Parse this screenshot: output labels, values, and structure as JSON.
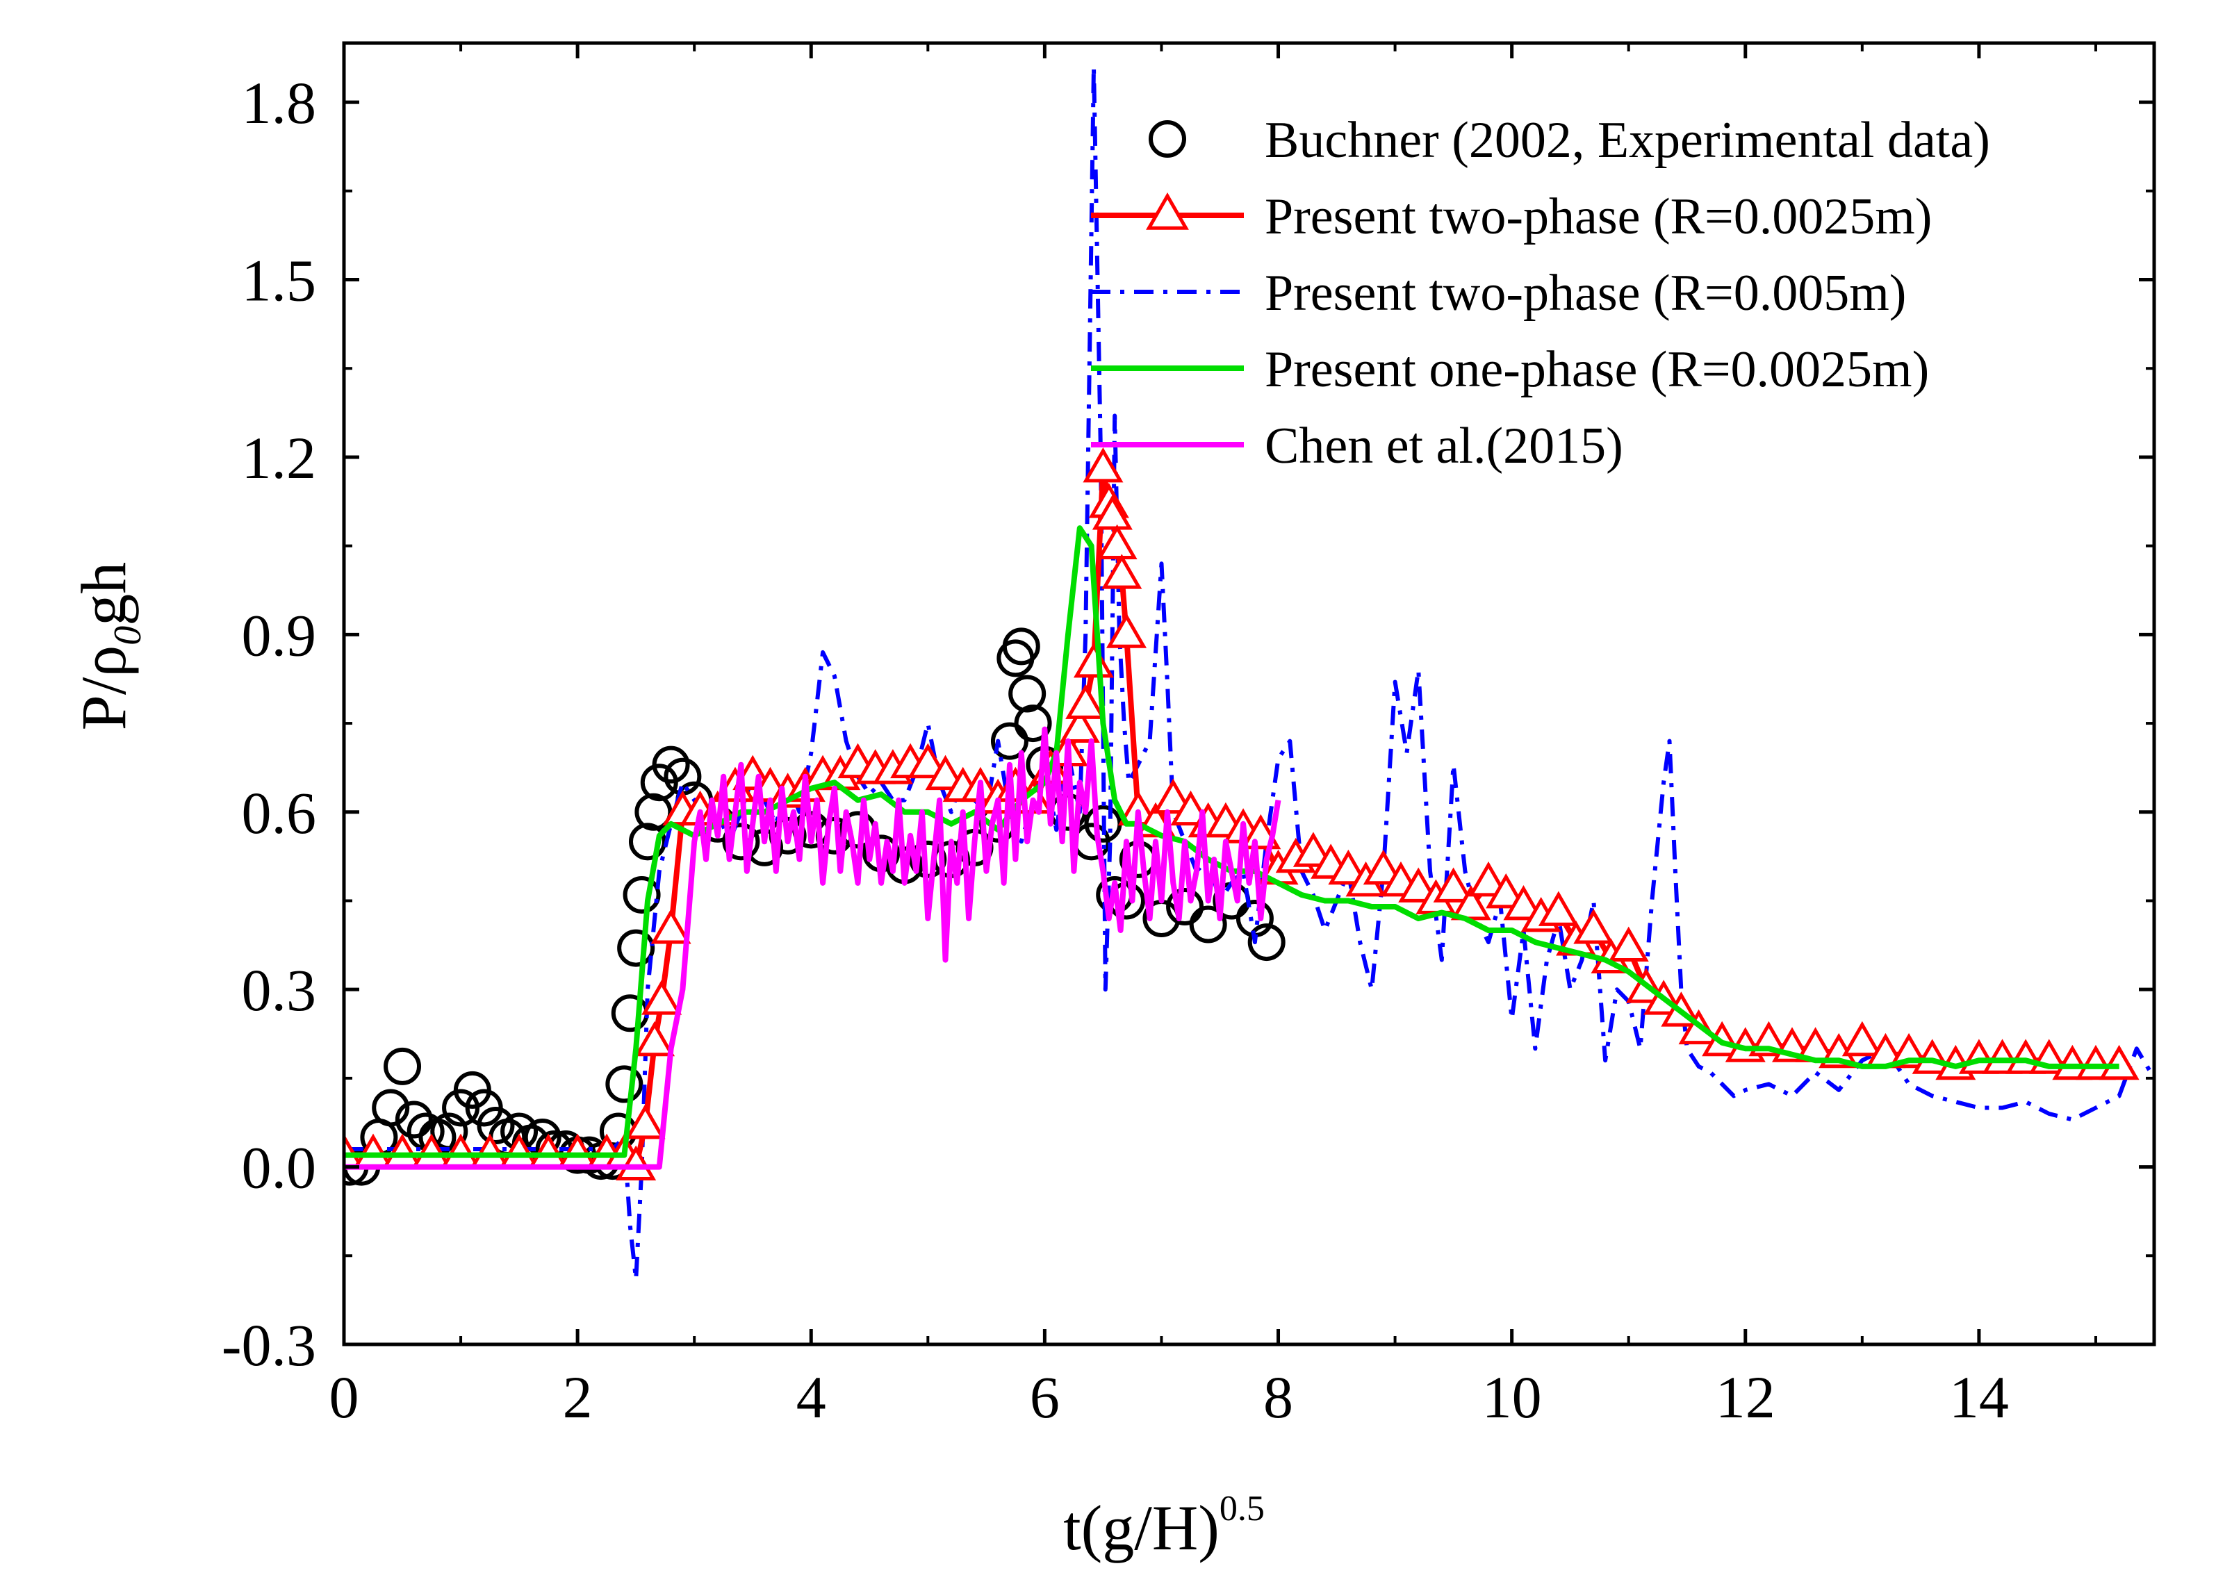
{
  "chart_data": {
    "type": "line",
    "title": "",
    "xlabel": "t(g/H)",
    "xlabel_superscript": "0.5",
    "ylabel_main": "P/ρ",
    "ylabel_sub": "0",
    "ylabel_tail": "gh",
    "xlim": [
      0,
      15.5
    ],
    "ylim": [
      -0.3,
      1.9
    ],
    "xticks": [
      0,
      2,
      4,
      6,
      8,
      10,
      12,
      14
    ],
    "xtick_labels": [
      "0",
      "2",
      "4",
      "6",
      "8",
      "10",
      "12",
      "14"
    ],
    "yticks": [
      -0.3,
      0.0,
      0.3,
      0.6,
      0.9,
      1.2,
      1.5,
      1.8
    ],
    "ytick_labels": [
      "-0.3",
      "0.0",
      "0.3",
      "0.6",
      "0.9",
      "1.2",
      "1.5",
      "1.8"
    ],
    "legend_position": "top-right",
    "colors": {
      "experimental": "#000000",
      "two_phase_0025": "#ff0000",
      "two_phase_005": "#0000ff",
      "one_phase": "#00dd00",
      "chen": "#ff00ff"
    },
    "series": [
      {
        "name": "Buchner (2002, Experimental data)",
        "style": "circles",
        "color": "#000000",
        "x": [
          0.05,
          0.15,
          0.3,
          0.4,
          0.5,
          0.6,
          0.7,
          0.8,
          0.9,
          1.0,
          1.1,
          1.2,
          1.3,
          1.4,
          1.5,
          1.6,
          1.7,
          1.8,
          1.9,
          2.0,
          2.1,
          2.2,
          2.3,
          2.35,
          2.4,
          2.45,
          2.5,
          2.55,
          2.6,
          2.65,
          2.7,
          2.8,
          2.9,
          3.0,
          3.2,
          3.4,
          3.6,
          3.8,
          4.0,
          4.2,
          4.4,
          4.6,
          4.8,
          5.0,
          5.2,
          5.4,
          5.6,
          5.7,
          5.75,
          5.8,
          5.85,
          5.9,
          6.0,
          6.2,
          6.4,
          6.5,
          6.6,
          6.7,
          6.8,
          7.0,
          7.2,
          7.4,
          7.6,
          7.8,
          7.9
        ],
        "values": [
          0.0,
          0.0,
          0.05,
          0.1,
          0.17,
          0.08,
          0.06,
          0.05,
          0.06,
          0.1,
          0.13,
          0.1,
          0.07,
          0.05,
          0.06,
          0.04,
          0.05,
          0.03,
          0.03,
          0.02,
          0.02,
          0.01,
          0.01,
          0.06,
          0.14,
          0.26,
          0.37,
          0.46,
          0.55,
          0.6,
          0.65,
          0.68,
          0.66,
          0.62,
          0.58,
          0.55,
          0.54,
          0.56,
          0.57,
          0.56,
          0.57,
          0.53,
          0.51,
          0.52,
          0.52,
          0.54,
          0.58,
          0.72,
          0.86,
          0.88,
          0.8,
          0.75,
          0.68,
          0.6,
          0.55,
          0.58,
          0.46,
          0.45,
          0.52,
          0.42,
          0.44,
          0.41,
          0.45,
          0.42,
          0.38
        ]
      },
      {
        "name": "Present two-phase (R=0.0025m)",
        "style": "line-triangles",
        "color": "#ff0000",
        "x": [
          0.0,
          0.25,
          0.5,
          0.75,
          1.0,
          1.25,
          1.5,
          1.75,
          2.0,
          2.25,
          2.4,
          2.5,
          2.58,
          2.66,
          2.72,
          2.8,
          2.9,
          3.05,
          3.2,
          3.35,
          3.5,
          3.65,
          3.8,
          3.95,
          4.1,
          4.25,
          4.4,
          4.55,
          4.7,
          4.85,
          5.0,
          5.15,
          5.3,
          5.45,
          5.6,
          5.75,
          5.9,
          6.05,
          6.2,
          6.3,
          6.35,
          6.42,
          6.5,
          6.55,
          6.58,
          6.62,
          6.66,
          6.7,
          6.8,
          6.95,
          7.1,
          7.25,
          7.4,
          7.55,
          7.7,
          7.85,
          8.0,
          8.15,
          8.3,
          8.45,
          8.6,
          8.75,
          8.9,
          9.05,
          9.2,
          9.35,
          9.5,
          9.65,
          9.8,
          9.95,
          10.1,
          10.25,
          10.4,
          10.55,
          10.7,
          10.85,
          11.0,
          11.15,
          11.3,
          11.45,
          11.6,
          11.8,
          12.0,
          12.2,
          12.4,
          12.6,
          12.8,
          13.0,
          13.2,
          13.4,
          13.6,
          13.8,
          14.0,
          14.2,
          14.4,
          14.6,
          14.8,
          15.0,
          15.2
        ],
        "values": [
          0.02,
          0.02,
          0.02,
          0.02,
          0.02,
          0.02,
          0.02,
          0.02,
          0.02,
          0.02,
          0.02,
          0.0,
          0.07,
          0.21,
          0.28,
          0.4,
          0.6,
          0.6,
          0.6,
          0.64,
          0.66,
          0.64,
          0.63,
          0.64,
          0.66,
          0.66,
          0.68,
          0.67,
          0.67,
          0.68,
          0.68,
          0.66,
          0.64,
          0.64,
          0.62,
          0.64,
          0.62,
          0.67,
          0.7,
          0.74,
          0.78,
          0.85,
          1.18,
          1.12,
          1.1,
          1.05,
          1.0,
          0.9,
          0.6,
          0.58,
          0.62,
          0.6,
          0.58,
          0.58,
          0.57,
          0.56,
          0.5,
          0.52,
          0.53,
          0.51,
          0.5,
          0.48,
          0.5,
          0.48,
          0.47,
          0.45,
          0.47,
          0.44,
          0.48,
          0.46,
          0.44,
          0.42,
          0.43,
          0.38,
          0.4,
          0.35,
          0.37,
          0.3,
          0.28,
          0.26,
          0.23,
          0.21,
          0.2,
          0.21,
          0.2,
          0.2,
          0.19,
          0.21,
          0.19,
          0.19,
          0.18,
          0.17,
          0.18,
          0.18,
          0.18,
          0.18,
          0.17,
          0.17,
          0.17
        ]
      },
      {
        "name": "Present two-phase (R=0.005m)",
        "style": "dashdot",
        "color": "#0000ff",
        "x": [
          0.0,
          0.5,
          1.0,
          1.5,
          2.0,
          2.3,
          2.4,
          2.45,
          2.5,
          2.55,
          2.6,
          2.7,
          2.8,
          2.9,
          3.0,
          3.1,
          3.2,
          3.3,
          3.4,
          3.5,
          3.6,
          3.7,
          3.8,
          3.9,
          4.0,
          4.1,
          4.2,
          4.3,
          4.4,
          4.5,
          4.6,
          4.7,
          4.8,
          4.9,
          5.0,
          5.1,
          5.2,
          5.3,
          5.4,
          5.5,
          5.6,
          5.7,
          5.8,
          5.9,
          6.0,
          6.1,
          6.2,
          6.3,
          6.35,
          6.42,
          6.48,
          6.52,
          6.56,
          6.6,
          6.64,
          6.68,
          6.72,
          6.8,
          6.9,
          7.0,
          7.05,
          7.1,
          7.2,
          7.3,
          7.4,
          7.5,
          7.6,
          7.7,
          7.8,
          7.9,
          8.0,
          8.1,
          8.2,
          8.3,
          8.4,
          8.5,
          8.6,
          8.7,
          8.8,
          8.9,
          9.0,
          9.1,
          9.2,
          9.3,
          9.4,
          9.5,
          9.6,
          9.7,
          9.8,
          9.9,
          10.0,
          10.1,
          10.2,
          10.3,
          10.4,
          10.5,
          10.6,
          10.7,
          10.8,
          10.9,
          11.0,
          11.1,
          11.2,
          11.3,
          11.35,
          11.4,
          11.45,
          11.5,
          11.6,
          11.7,
          11.8,
          11.9,
          12.0,
          12.2,
          12.4,
          12.6,
          12.8,
          13.0,
          13.2,
          13.4,
          13.6,
          13.8,
          14.0,
          14.2,
          14.4,
          14.6,
          14.8,
          15.0,
          15.2,
          15.35,
          15.5
        ],
        "values": [
          0.03,
          0.03,
          0.03,
          0.03,
          0.03,
          0.03,
          0.05,
          -0.1,
          -0.19,
          0.0,
          0.3,
          0.5,
          0.58,
          0.65,
          0.62,
          0.58,
          0.6,
          0.55,
          0.6,
          0.66,
          0.62,
          0.58,
          0.65,
          0.6,
          0.7,
          0.87,
          0.83,
          0.72,
          0.66,
          0.63,
          0.65,
          0.62,
          0.62,
          0.67,
          0.75,
          0.65,
          0.6,
          0.66,
          0.62,
          0.6,
          0.72,
          0.6,
          0.55,
          0.62,
          0.68,
          0.57,
          0.7,
          0.6,
          0.9,
          1.86,
          1.2,
          0.3,
          0.55,
          1.27,
          0.9,
          0.75,
          0.65,
          0.68,
          0.72,
          1.02,
          0.82,
          0.6,
          0.55,
          0.5,
          0.52,
          0.45,
          0.48,
          0.5,
          0.38,
          0.55,
          0.69,
          0.72,
          0.5,
          0.46,
          0.4,
          0.45,
          0.5,
          0.38,
          0.3,
          0.5,
          0.82,
          0.7,
          0.84,
          0.5,
          0.35,
          0.68,
          0.5,
          0.42,
          0.38,
          0.45,
          0.25,
          0.4,
          0.2,
          0.35,
          0.42,
          0.3,
          0.35,
          0.45,
          0.18,
          0.3,
          0.28,
          0.2,
          0.45,
          0.65,
          0.72,
          0.5,
          0.3,
          0.2,
          0.17,
          0.16,
          0.14,
          0.12,
          0.13,
          0.14,
          0.12,
          0.16,
          0.13,
          0.18,
          0.2,
          0.14,
          0.12,
          0.11,
          0.1,
          0.1,
          0.11,
          0.09,
          0.08,
          0.1,
          0.12,
          0.2,
          0.15
        ]
      },
      {
        "name": "Present one-phase (R=0.0025m)",
        "style": "line",
        "color": "#00dd00",
        "x": [
          0.0,
          0.5,
          1.0,
          1.5,
          2.0,
          2.3,
          2.4,
          2.5,
          2.6,
          2.7,
          2.8,
          3.0,
          3.2,
          3.4,
          3.6,
          3.8,
          4.0,
          4.2,
          4.4,
          4.6,
          4.8,
          5.0,
          5.2,
          5.4,
          5.6,
          5.8,
          6.0,
          6.1,
          6.2,
          6.3,
          6.4,
          6.5,
          6.6,
          6.7,
          6.8,
          7.0,
          7.2,
          7.4,
          7.6,
          7.8,
          8.0,
          8.2,
          8.4,
          8.6,
          8.8,
          9.0,
          9.2,
          9.4,
          9.6,
          9.8,
          10.0,
          10.2,
          10.4,
          10.6,
          10.8,
          11.0,
          11.2,
          11.4,
          11.6,
          11.8,
          12.0,
          12.2,
          12.4,
          12.6,
          12.8,
          13.0,
          13.2,
          13.4,
          13.6,
          13.8,
          14.0,
          14.2,
          14.4,
          14.6,
          14.8,
          15.0,
          15.2
        ],
        "values": [
          0.02,
          0.02,
          0.02,
          0.02,
          0.02,
          0.02,
          0.02,
          0.2,
          0.45,
          0.56,
          0.58,
          0.56,
          0.58,
          0.6,
          0.6,
          0.62,
          0.64,
          0.65,
          0.62,
          0.63,
          0.6,
          0.6,
          0.58,
          0.6,
          0.57,
          0.62,
          0.65,
          0.7,
          0.9,
          1.08,
          1.05,
          0.75,
          0.62,
          0.58,
          0.58,
          0.56,
          0.55,
          0.52,
          0.5,
          0.5,
          0.48,
          0.46,
          0.45,
          0.45,
          0.44,
          0.44,
          0.42,
          0.43,
          0.42,
          0.4,
          0.4,
          0.38,
          0.37,
          0.36,
          0.35,
          0.33,
          0.3,
          0.27,
          0.24,
          0.21,
          0.2,
          0.2,
          0.19,
          0.18,
          0.18,
          0.17,
          0.17,
          0.18,
          0.18,
          0.17,
          0.18,
          0.18,
          0.18,
          0.17,
          0.17,
          0.17,
          0.17
        ]
      },
      {
        "name": "Chen et al.(2015)",
        "style": "line",
        "color": "#ff00ff",
        "x": [
          0.0,
          0.5,
          1.0,
          1.5,
          2.0,
          2.3,
          2.5,
          2.7,
          2.8,
          2.9,
          3.0,
          3.05,
          3.1,
          3.15,
          3.2,
          3.25,
          3.3,
          3.35,
          3.4,
          3.45,
          3.5,
          3.55,
          3.6,
          3.65,
          3.7,
          3.75,
          3.8,
          3.85,
          3.9,
          3.95,
          4.0,
          4.05,
          4.1,
          4.15,
          4.2,
          4.25,
          4.3,
          4.35,
          4.4,
          4.45,
          4.5,
          4.55,
          4.6,
          4.65,
          4.7,
          4.75,
          4.8,
          4.85,
          4.9,
          4.95,
          5.0,
          5.05,
          5.1,
          5.15,
          5.2,
          5.25,
          5.3,
          5.35,
          5.4,
          5.45,
          5.5,
          5.55,
          5.6,
          5.65,
          5.7,
          5.75,
          5.8,
          5.85,
          5.9,
          5.95,
          6.0,
          6.05,
          6.1,
          6.15,
          6.2,
          6.25,
          6.3,
          6.35,
          6.4,
          6.45,
          6.5,
          6.55,
          6.6,
          6.65,
          6.7,
          6.75,
          6.8,
          6.85,
          6.9,
          6.95,
          7.0,
          7.05,
          7.1,
          7.15,
          7.2,
          7.25,
          7.3,
          7.35,
          7.4,
          7.45,
          7.5,
          7.55,
          7.6,
          7.65,
          7.7,
          7.75,
          7.8,
          7.85,
          7.9,
          7.95,
          8.0
        ],
        "values": [
          0.0,
          0.0,
          0.0,
          0.0,
          0.0,
          0.0,
          0.0,
          0.0,
          0.2,
          0.3,
          0.55,
          0.6,
          0.52,
          0.62,
          0.56,
          0.66,
          0.52,
          0.6,
          0.68,
          0.5,
          0.58,
          0.66,
          0.55,
          0.62,
          0.5,
          0.64,
          0.55,
          0.6,
          0.52,
          0.66,
          0.55,
          0.62,
          0.48,
          0.58,
          0.64,
          0.5,
          0.6,
          0.55,
          0.48,
          0.62,
          0.52,
          0.58,
          0.48,
          0.55,
          0.5,
          0.62,
          0.48,
          0.56,
          0.5,
          0.6,
          0.42,
          0.52,
          0.62,
          0.35,
          0.55,
          0.48,
          0.6,
          0.42,
          0.55,
          0.65,
          0.5,
          0.58,
          0.62,
          0.48,
          0.68,
          0.52,
          0.7,
          0.55,
          0.62,
          0.6,
          0.74,
          0.58,
          0.7,
          0.55,
          0.72,
          0.5,
          0.65,
          0.6,
          0.72,
          0.56,
          0.5,
          0.42,
          0.48,
          0.4,
          0.55,
          0.45,
          0.6,
          0.5,
          0.42,
          0.55,
          0.45,
          0.6,
          0.48,
          0.42,
          0.55,
          0.45,
          0.5,
          0.6,
          0.45,
          0.52,
          0.42,
          0.55,
          0.5,
          0.45,
          0.58,
          0.48,
          0.55,
          0.42,
          0.52,
          0.56,
          0.62
        ]
      }
    ]
  }
}
